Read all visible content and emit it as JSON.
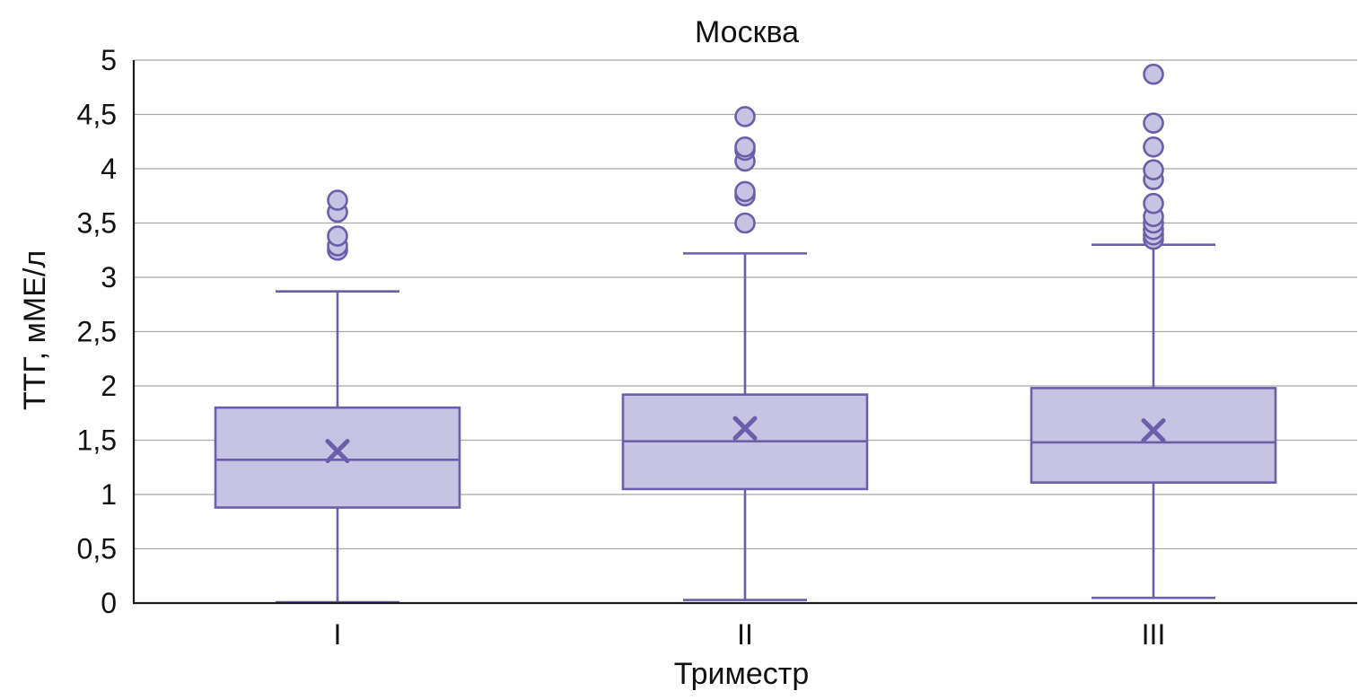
{
  "chart_data": {
    "type": "boxplot",
    "title": "Москва",
    "xlabel": "Триместр",
    "ylabel": "ТТГ, мМЕ/л",
    "ylim": [
      0,
      5
    ],
    "yticks": [
      0,
      0.5,
      1,
      1.5,
      2,
      2.5,
      3,
      3.5,
      4,
      4.5,
      5
    ],
    "ytick_labels": [
      "0",
      "0,5",
      "1",
      "1,5",
      "2",
      "2,5",
      "3",
      "3,5",
      "4",
      "4,5",
      "5"
    ],
    "grid": true,
    "colors": {
      "box_fill": "#c6c3e3",
      "line": "#6a5fa8",
      "grid": "#a8a8a8"
    },
    "categories": [
      "I",
      "II",
      "III"
    ],
    "boxes": [
      {
        "category": "I",
        "min": 0.0,
        "q1": 0.88,
        "median": 1.32,
        "q3": 1.8,
        "max": 2.87,
        "mean": 1.4,
        "outliers": [
          3.25,
          3.29,
          3.38,
          3.6,
          3.71
        ]
      },
      {
        "category": "II",
        "min": 0.02,
        "q1": 1.05,
        "median": 1.49,
        "q3": 1.92,
        "max": 3.22,
        "mean": 1.61,
        "outliers": [
          3.5,
          3.75,
          3.79,
          4.07,
          4.17,
          4.2,
          4.48
        ]
      },
      {
        "category": "III",
        "min": 0.04,
        "q1": 1.11,
        "median": 1.48,
        "q3": 1.98,
        "max": 3.3,
        "mean": 1.59,
        "outliers": [
          3.35,
          3.39,
          3.44,
          3.5,
          3.56,
          3.68,
          3.9,
          3.99,
          4.2,
          4.42,
          4.87
        ]
      }
    ]
  }
}
